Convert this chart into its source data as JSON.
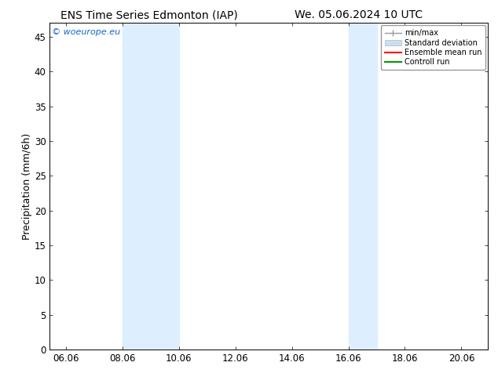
{
  "title_left": "ENS Time Series Edmonton (IAP)",
  "title_right": "We. 05.06.2024 10 UTC",
  "ylabel": "Precipitation (mm/6h)",
  "xlim": [
    5.5,
    21.0
  ],
  "ylim": [
    0,
    47
  ],
  "xticks": [
    6.06,
    8.06,
    10.06,
    12.06,
    14.06,
    16.06,
    18.06,
    20.06
  ],
  "xtick_labels": [
    "06.06",
    "08.06",
    "10.06",
    "12.06",
    "14.06",
    "16.06",
    "18.06",
    "20.06"
  ],
  "yticks": [
    0,
    5,
    10,
    15,
    20,
    25,
    30,
    35,
    40,
    45
  ],
  "shaded_bands": [
    {
      "x_start": 8.06,
      "x_end": 10.06
    },
    {
      "x_start": 16.06,
      "x_end": 17.06
    }
  ],
  "band_color": "#ddeeff",
  "copyright_text": "© woeurope.eu",
  "copyright_color": "#1166cc",
  "legend_labels": [
    "min/max",
    "Standard deviation",
    "Ensemble mean run",
    "Controll run"
  ],
  "background_color": "#ffffff",
  "plot_bg_color": "#ffffff",
  "title_fontsize": 10,
  "tick_fontsize": 8.5,
  "ylabel_fontsize": 9
}
